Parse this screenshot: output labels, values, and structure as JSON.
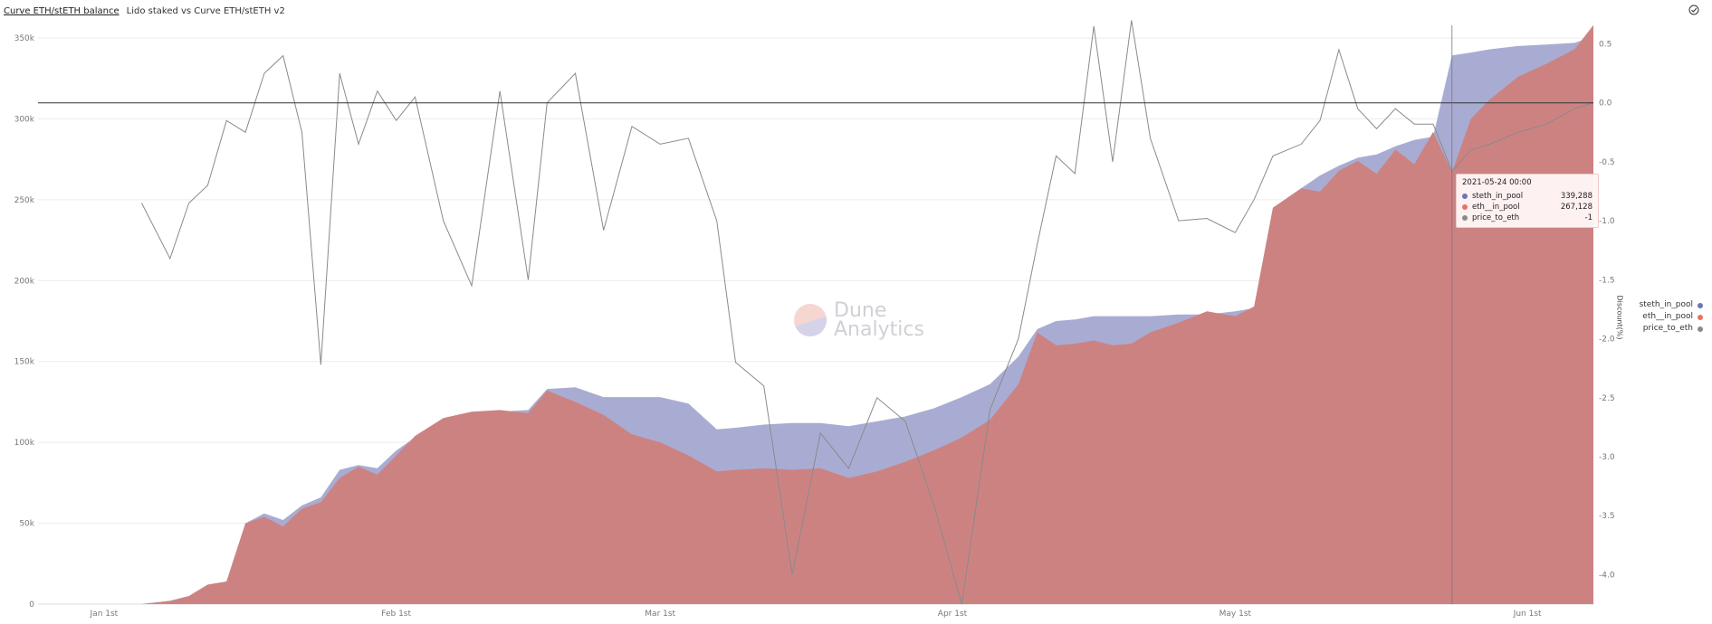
{
  "header": {
    "title": "Curve ETH/stETH balance",
    "subtitle": "Lido staked vs Curve ETH/stETH v2"
  },
  "icons": {
    "options": "check-circle-icon"
  },
  "watermark": {
    "line1": "Dune",
    "line2": "Analytics"
  },
  "tooltip": {
    "date": "2021-05-24 00:00",
    "rows": [
      {
        "name": "steth_in_pool",
        "value": "339,288",
        "color": "#6f74b6"
      },
      {
        "name": "eth__in_pool",
        "value": "267,128",
        "color": "#e8735e"
      },
      {
        "name": "price_to_eth",
        "value": "-1",
        "color": "#8a8a8a"
      }
    ]
  },
  "legend": [
    {
      "name": "steth_in_pool",
      "color": "#6f74b6"
    },
    {
      "name": "eth__in_pool",
      "color": "#e8735e"
    },
    {
      "name": "price_to_eth",
      "color": "#8a8a8a"
    }
  ],
  "colors": {
    "steth_fill": "#a9acd2",
    "eth_fill": "#cd8282",
    "eth_edge": "#f0a08a",
    "price_line": "#8a8a8a",
    "zero_line": "#333333",
    "grid": "#ececec"
  },
  "chart_data": {
    "type": "area",
    "left_axis": {
      "ticks": [
        "0",
        "50k",
        "100k",
        "150k",
        "200k",
        "250k",
        "300k",
        "350k"
      ],
      "range": [
        0,
        350000
      ]
    },
    "right_axis": {
      "label": "Discount(%)",
      "ticks": [
        "0.5",
        "0.0",
        "-0.5",
        "-1.0",
        "-1.5",
        "-2.0",
        "-2.5",
        "-3.0",
        "-3.5",
        "-4.0"
      ],
      "range": [
        -4.25,
        0.55
      ]
    },
    "x_ticks": [
      "Jan 1st",
      "Feb 1st",
      "Mar 1st",
      "Apr 1st",
      "May 1st",
      "Jun 1st"
    ],
    "x_range": [
      "2020-12-25",
      "2021-06-08"
    ],
    "x": [
      "2021-01-05",
      "2021-01-08",
      "2021-01-10",
      "2021-01-12",
      "2021-01-14",
      "2021-01-16",
      "2021-01-18",
      "2021-01-20",
      "2021-01-22",
      "2021-01-24",
      "2021-01-26",
      "2021-01-28",
      "2021-01-30",
      "2021-02-01",
      "2021-02-03",
      "2021-02-06",
      "2021-02-09",
      "2021-02-12",
      "2021-02-15",
      "2021-02-17",
      "2021-02-20",
      "2021-02-23",
      "2021-02-26",
      "2021-03-01",
      "2021-03-04",
      "2021-03-07",
      "2021-03-09",
      "2021-03-12",
      "2021-03-15",
      "2021-03-18",
      "2021-03-21",
      "2021-03-24",
      "2021-03-27",
      "2021-03-30",
      "2021-04-02",
      "2021-04-05",
      "2021-04-08",
      "2021-04-10",
      "2021-04-12",
      "2021-04-14",
      "2021-04-16",
      "2021-04-18",
      "2021-04-20",
      "2021-04-22",
      "2021-04-25",
      "2021-04-28",
      "2021-05-01",
      "2021-05-03",
      "2021-05-05",
      "2021-05-08",
      "2021-05-10",
      "2021-05-12",
      "2021-05-14",
      "2021-05-16",
      "2021-05-18",
      "2021-05-20",
      "2021-05-22",
      "2021-05-24",
      "2021-05-26",
      "2021-05-28",
      "2021-05-31",
      "2021-06-03",
      "2021-06-06",
      "2021-06-08"
    ],
    "series": [
      {
        "name": "steth_in_pool",
        "values": [
          0,
          2000,
          5000,
          12000,
          14000,
          50000,
          56000,
          52000,
          61000,
          66000,
          83000,
          86000,
          84000,
          95000,
          103000,
          114000,
          117000,
          119000,
          120000,
          133000,
          134000,
          128000,
          128000,
          128000,
          124000,
          108000,
          109000,
          111000,
          112000,
          112000,
          110000,
          113000,
          116000,
          121000,
          128000,
          136000,
          153000,
          170000,
          175000,
          176000,
          178000,
          178000,
          178000,
          178000,
          179000,
          179000,
          181000,
          183000,
          245000,
          257000,
          265000,
          271000,
          276000,
          278000,
          283000,
          287000,
          289000,
          339288,
          341000,
          343000,
          345000,
          346000,
          347000,
          351000
        ]
      },
      {
        "name": "eth__in_pool",
        "values": [
          0,
          2000,
          5000,
          12000,
          14000,
          50000,
          54000,
          48000,
          59000,
          63000,
          78000,
          85000,
          80000,
          92000,
          104000,
          115000,
          119000,
          120000,
          118000,
          132000,
          125000,
          117000,
          105000,
          100000,
          92000,
          82000,
          83000,
          84000,
          83000,
          84000,
          78000,
          82000,
          88000,
          95000,
          103000,
          114000,
          136000,
          168000,
          160000,
          161000,
          163000,
          160000,
          161000,
          168000,
          174000,
          181000,
          178000,
          184000,
          245000,
          257000,
          255000,
          268000,
          274000,
          266000,
          281000,
          272000,
          292000,
          267128,
          300000,
          312000,
          326000,
          334000,
          343000,
          358000
        ]
      },
      {
        "name": "price_to_eth",
        "values": [
          -0.85,
          -1.32,
          -0.85,
          -0.7,
          -0.15,
          -0.25,
          0.25,
          0.4,
          -0.25,
          -2.22,
          0.25,
          -0.35,
          0.1,
          -0.15,
          0.05,
          -1.0,
          -1.55,
          0.1,
          -1.5,
          0.0,
          0.25,
          -1.08,
          -0.2,
          -0.35,
          -0.3,
          -1.0,
          -2.2,
          -2.4,
          -4.0,
          -2.8,
          -3.1,
          -2.5,
          -2.7,
          -3.4,
          -4.25,
          -2.6,
          -2.0,
          -1.2,
          -0.45,
          -0.6,
          0.65,
          -0.5,
          0.7,
          -0.3,
          -1.0,
          -0.98,
          -1.1,
          -0.82,
          -0.45,
          -0.35,
          -0.15,
          0.45,
          -0.05,
          -0.22,
          -0.05,
          -0.18,
          -0.18,
          -0.58,
          -0.4,
          -0.35,
          -0.25,
          -0.18,
          -0.05,
          0.0
        ]
      }
    ]
  }
}
